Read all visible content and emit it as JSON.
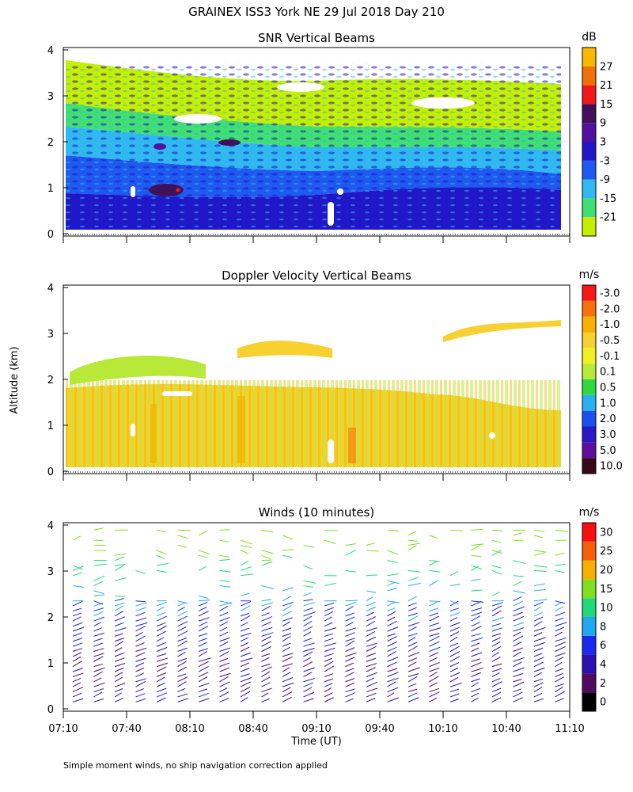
{
  "title": "GRAINEX ISS3 York NE  29 Jul 2018 Day 210",
  "footer": "Simple moment winds, no ship navigation correction applied",
  "chart_data": [
    {
      "id": "snr",
      "type": "heatmap",
      "title": "SNR Vertical Beams",
      "ylabel": "Altitude (km)",
      "ylim": [
        0,
        4
      ],
      "yticks": [
        "0",
        "1",
        "2",
        "3",
        "4"
      ],
      "colorbar": {
        "unit": "dB",
        "labels": [
          "-21",
          "-15",
          "-9",
          "-3",
          "3",
          "9",
          "15",
          "21",
          "27"
        ],
        "colors": [
          "#c4f000",
          "#40e070",
          "#30b8f0",
          "#1e5af0",
          "#2018c8",
          "#5010a0",
          "#40105a",
          "#f01818",
          "#f07008",
          "#f8b800"
        ]
      },
      "altitude_profile_dB": [
        {
          "alt_km": 0.2,
          "dB": 3
        },
        {
          "alt_km": 0.5,
          "dB": 0
        },
        {
          "alt_km": 0.9,
          "dB": -4
        },
        {
          "alt_km": 1.3,
          "dB": -10
        },
        {
          "alt_km": 1.7,
          "dB": -14
        },
        {
          "alt_km": 2.2,
          "dB": -19
        },
        {
          "alt_km": 2.8,
          "dB": -20
        },
        {
          "alt_km": 3.2,
          "dB": -21
        }
      ]
    },
    {
      "id": "doppler",
      "type": "heatmap",
      "title": "Doppler Velocity Vertical Beams",
      "ylabel": "Altitude (km)",
      "ylim": [
        0,
        4
      ],
      "yticks": [
        "0",
        "1",
        "2",
        "3",
        "4"
      ],
      "colorbar": {
        "unit": "m/s",
        "labels": [
          "10.0",
          "5.0",
          "3.0",
          "2.0",
          "1.0",
          "0.5",
          "0.1",
          "-0.1",
          "-0.5",
          "-1.0",
          "-2.0",
          "-3.0"
        ],
        "colors": [
          "#380818",
          "#5a109c",
          "#2a18c8",
          "#1a50f0",
          "#28b0f0",
          "#30d840",
          "#b8e838",
          "#f0f020",
          "#f8d030",
          "#f8b000",
          "#f87008",
          "#f81818"
        ]
      },
      "typical_velocity_ms": -0.4
    },
    {
      "id": "winds",
      "type": "scatter",
      "title": "Winds (10 minutes)",
      "ylabel": "Altitude (km)",
      "xlabel": "Time (UT)",
      "ylim": [
        0,
        4
      ],
      "yticks": [
        "0",
        "1",
        "2",
        "3",
        "4"
      ],
      "xticks": [
        "07:10",
        "07:40",
        "08:10",
        "08:40",
        "09:10",
        "09:40",
        "10:10",
        "10:40",
        "11:10"
      ],
      "colorbar": {
        "unit": "m/s",
        "labels": [
          "0",
          "2",
          "4",
          "6",
          "8",
          "10",
          "15",
          "20",
          "25",
          "30"
        ],
        "colors": [
          "#000000",
          "#500a60",
          "#2a10b0",
          "#1a28f0",
          "#20a8f0",
          "#20d878",
          "#80e020",
          "#f8b000",
          "#f86008",
          "#f81010"
        ]
      },
      "wind_speed_profile_ms": [
        {
          "alt_km": 0.3,
          "speed": 5
        },
        {
          "alt_km": 1.0,
          "speed": 4
        },
        {
          "alt_km": 1.5,
          "speed": 6
        },
        {
          "alt_km": 2.0,
          "speed": 7
        },
        {
          "alt_km": 2.5,
          "speed": 9
        },
        {
          "alt_km": 3.0,
          "speed": 12
        },
        {
          "alt_km": 3.6,
          "speed": 18
        }
      ]
    }
  ]
}
